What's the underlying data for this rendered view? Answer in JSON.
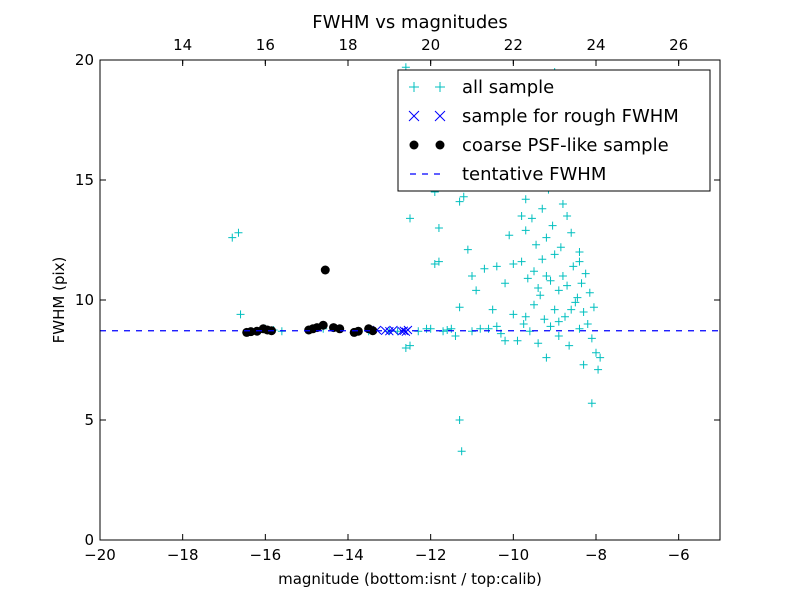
{
  "chart_data": {
    "type": "scatter",
    "title": "FWHM vs magnitudes",
    "xlabel": "magnitude (bottom:isnt / top:calib)",
    "ylabel": "FWHM (pix)",
    "xlim": [
      -20,
      -5
    ],
    "ylim": [
      0,
      20
    ],
    "x_ticks": [
      -20,
      -18,
      -16,
      -14,
      -12,
      -10,
      -8,
      -6
    ],
    "x_tick_labels": [
      "−20",
      "−18",
      "−16",
      "−14",
      "−12",
      "−10",
      "−8",
      "−6"
    ],
    "y_ticks": [
      0,
      5,
      10,
      15,
      20
    ],
    "y_tick_labels": [
      "0",
      "5",
      "10",
      "15",
      "20"
    ],
    "top_axis": {
      "offset": 32,
      "ticks": [
        14,
        16,
        18,
        20,
        22,
        24,
        26
      ],
      "tick_labels": [
        "14",
        "16",
        "18",
        "20",
        "22",
        "24",
        "26"
      ]
    },
    "legend_position": "top-right",
    "series": [
      {
        "name": "all sample",
        "marker": "plus",
        "color": "#00bfbf",
        "points": [
          [
            -16.8,
            12.6
          ],
          [
            -16.65,
            12.8
          ],
          [
            -16.6,
            9.4
          ],
          [
            -16.0,
            8.8
          ],
          [
            -15.8,
            8.75
          ],
          [
            -15.6,
            8.7
          ],
          [
            -14.6,
            8.8
          ],
          [
            -14.2,
            8.8
          ],
          [
            -13.5,
            8.7
          ],
          [
            -13.0,
            8.7
          ],
          [
            -12.6,
            8.0
          ],
          [
            -12.5,
            8.1
          ],
          [
            -12.5,
            13.4
          ],
          [
            -12.3,
            8.7
          ],
          [
            -12.0,
            8.8
          ],
          [
            -11.9,
            14.5
          ],
          [
            -11.9,
            11.5
          ],
          [
            -11.8,
            11.6
          ],
          [
            -11.8,
            13.0
          ],
          [
            -11.7,
            8.7
          ],
          [
            -11.5,
            8.8
          ],
          [
            -11.4,
            8.5
          ],
          [
            -11.3,
            9.7
          ],
          [
            -11.3,
            14.1
          ],
          [
            -11.2,
            14.3
          ],
          [
            -11.3,
            5.0
          ],
          [
            -11.25,
            3.7
          ],
          [
            -11.1,
            12.1
          ],
          [
            -11.0,
            8.7
          ],
          [
            -11.0,
            11.0
          ],
          [
            -10.9,
            10.4
          ],
          [
            -10.8,
            14.8
          ],
          [
            -10.7,
            11.3
          ],
          [
            -10.6,
            8.8
          ],
          [
            -10.5,
            9.6
          ],
          [
            -10.4,
            11.4
          ],
          [
            -10.3,
            8.6
          ],
          [
            -10.2,
            8.3
          ],
          [
            -10.2,
            10.7
          ],
          [
            -10.1,
            12.7
          ],
          [
            -10.0,
            11.5
          ],
          [
            -10.0,
            9.4
          ],
          [
            -9.9,
            15.5
          ],
          [
            -9.9,
            8.3
          ],
          [
            -9.8,
            13.5
          ],
          [
            -9.8,
            11.6
          ],
          [
            -9.75,
            9.0
          ],
          [
            -9.7,
            14.2
          ],
          [
            -9.7,
            12.9
          ],
          [
            -9.65,
            10.9
          ],
          [
            -9.6,
            8.7
          ],
          [
            -9.6,
            16.0
          ],
          [
            -9.55,
            13.4
          ],
          [
            -9.5,
            11.2
          ],
          [
            -9.5,
            9.8
          ],
          [
            -9.45,
            12.3
          ],
          [
            -9.4,
            8.2
          ],
          [
            -9.4,
            15.0
          ],
          [
            -9.35,
            10.2
          ],
          [
            -9.3,
            13.8
          ],
          [
            -9.3,
            11.7
          ],
          [
            -9.25,
            9.2
          ],
          [
            -9.2,
            12.6
          ],
          [
            -9.2,
            7.6
          ],
          [
            -9.15,
            14.6
          ],
          [
            -9.1,
            10.8
          ],
          [
            -9.1,
            8.9
          ],
          [
            -9.05,
            13.1
          ],
          [
            -9.0,
            11.9
          ],
          [
            -9.0,
            9.6
          ],
          [
            -8.95,
            15.7
          ],
          [
            -8.9,
            10.4
          ],
          [
            -8.9,
            8.5
          ],
          [
            -8.85,
            12.2
          ],
          [
            -8.8,
            14.0
          ],
          [
            -8.8,
            11.0
          ],
          [
            -8.75,
            9.3
          ],
          [
            -8.7,
            13.5
          ],
          [
            -8.7,
            10.6
          ],
          [
            -8.65,
            8.1
          ],
          [
            -8.6,
            16.3
          ],
          [
            -8.6,
            12.8
          ],
          [
            -8.55,
            11.4
          ],
          [
            -8.5,
            9.9
          ],
          [
            -8.5,
            14.8
          ],
          [
            -8.45,
            10.1
          ],
          [
            -8.4,
            8.8
          ],
          [
            -8.4,
            12.0
          ],
          [
            -8.35,
            10.7
          ],
          [
            -8.3,
            9.5
          ],
          [
            -8.3,
            7.3
          ],
          [
            -8.25,
            11.1
          ],
          [
            -8.2,
            9.0
          ],
          [
            -8.15,
            10.3
          ],
          [
            -8.1,
            8.4
          ],
          [
            -8.05,
            9.7
          ],
          [
            -8.0,
            7.8
          ],
          [
            -8.1,
            5.7
          ],
          [
            -7.95,
            7.1
          ],
          [
            -7.9,
            7.6
          ],
          [
            -9.6,
            17.5
          ],
          [
            -9.2,
            18.2
          ],
          [
            -8.8,
            17.0
          ],
          [
            -8.5,
            18.6
          ],
          [
            -9.0,
            19.5
          ],
          [
            -11.6,
            16.8
          ],
          [
            -10.6,
            17.6
          ],
          [
            -12.6,
            19.7
          ],
          [
            -8.7,
            15.2
          ],
          [
            -9.2,
            11.0
          ],
          [
            -8.9,
            9.1
          ],
          [
            -8.6,
            9.6
          ],
          [
            -9.4,
            10.5
          ],
          [
            -8.4,
            11.6
          ],
          [
            -9.7,
            9.3
          ],
          [
            -10.4,
            8.9
          ],
          [
            -10.8,
            8.8
          ],
          [
            -11.6,
            8.75
          ],
          [
            -12.1,
            8.8
          ],
          [
            -12.8,
            8.7
          ]
        ]
      },
      {
        "name": "sample for rough FWHM",
        "marker": "x",
        "color": "#0000ff",
        "points": [
          [
            -13.3,
            8.75
          ],
          [
            -13.1,
            8.72
          ],
          [
            -13.0,
            8.7
          ],
          [
            -12.9,
            8.75
          ],
          [
            -12.7,
            8.7
          ],
          [
            -12.65,
            8.72
          ],
          [
            -12.6,
            8.68
          ],
          [
            -12.55,
            8.75
          ]
        ]
      },
      {
        "name": "coarse PSF-like sample",
        "marker": "circle",
        "color": "#000000",
        "points": [
          [
            -16.45,
            8.65
          ],
          [
            -16.35,
            8.68
          ],
          [
            -16.2,
            8.7
          ],
          [
            -16.05,
            8.8
          ],
          [
            -15.95,
            8.75
          ],
          [
            -15.85,
            8.72
          ],
          [
            -14.95,
            8.75
          ],
          [
            -14.85,
            8.8
          ],
          [
            -14.75,
            8.85
          ],
          [
            -14.6,
            8.95
          ],
          [
            -14.55,
            11.25
          ],
          [
            -14.35,
            8.85
          ],
          [
            -14.2,
            8.8
          ],
          [
            -13.85,
            8.65
          ],
          [
            -13.75,
            8.7
          ],
          [
            -13.5,
            8.8
          ],
          [
            -13.4,
            8.72
          ]
        ]
      },
      {
        "name": "tentative FWHM",
        "marker": "dashed-line",
        "color": "#0000ff",
        "value": 8.72
      }
    ]
  }
}
